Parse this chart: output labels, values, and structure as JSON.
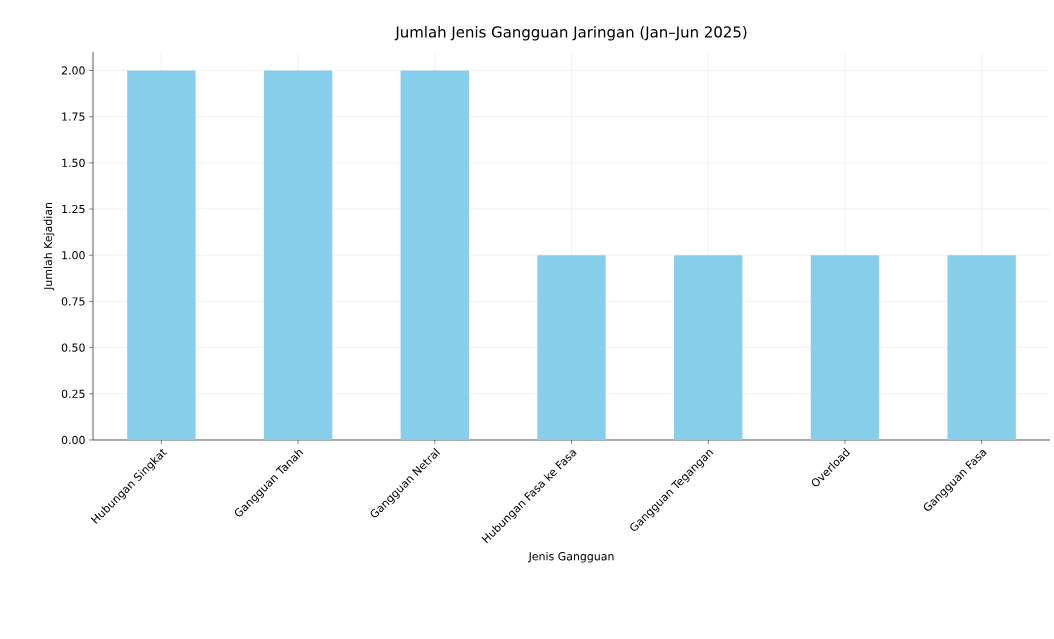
{
  "chart_data": {
    "type": "bar",
    "title": "Jumlah Jenis Gangguan Jaringan (Jan–Jun 2025)",
    "xlabel": "Jenis Gangguan",
    "ylabel": "Jumlah Kejadian",
    "categories": [
      "Hubungan Singkat",
      "Gangguan Tanah",
      "Gangguan Netral",
      "Hubungan Fasa ke Fasa",
      "Gangguan Tegangan",
      "Overload",
      "Gangguan Fasa"
    ],
    "values": [
      2,
      2,
      2,
      1,
      1,
      1,
      1
    ],
    "color": "#87ceeb",
    "ylim": [
      0,
      2.1
    ],
    "yticks": [
      {
        "value": 0,
        "label": "0.00"
      },
      {
        "value": 0.25,
        "label": "0.25"
      },
      {
        "value": 0.5,
        "label": "0.50"
      },
      {
        "value": 0.75,
        "label": "0.75"
      },
      {
        "value": 1,
        "label": "1.00"
      },
      {
        "value": 1.25,
        "label": "1.25"
      },
      {
        "value": 1.5,
        "label": "1.50"
      },
      {
        "value": 1.75,
        "label": "1.75"
      },
      {
        "value": 2,
        "label": "2.00"
      }
    ],
    "grid": true
  }
}
